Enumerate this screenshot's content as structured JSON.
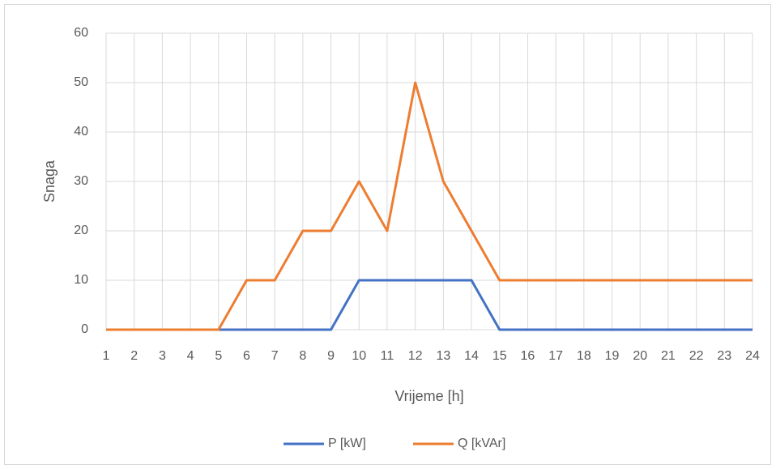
{
  "chart_data": {
    "type": "line",
    "x": [
      1,
      2,
      3,
      4,
      5,
      6,
      7,
      8,
      9,
      10,
      11,
      12,
      13,
      14,
      15,
      16,
      17,
      18,
      19,
      20,
      21,
      22,
      23,
      24
    ],
    "xlim": [
      1,
      24
    ],
    "xticks": [
      1,
      2,
      3,
      4,
      5,
      6,
      7,
      8,
      9,
      10,
      11,
      12,
      13,
      14,
      15,
      16,
      17,
      18,
      19,
      20,
      21,
      22,
      23,
      24
    ],
    "ylim": [
      0,
      60
    ],
    "yticks": [
      0,
      10,
      20,
      30,
      40,
      50,
      60
    ],
    "x_label": "Vrijeme [h]",
    "y_label": "Snaga",
    "grid": true,
    "legend": "bottom",
    "series": [
      {
        "name": "P [kW]",
        "color": "#4472c4",
        "values": [
          0,
          0,
          0,
          0,
          0,
          0,
          0,
          0,
          0,
          10,
          10,
          10,
          10,
          10,
          0,
          0,
          0,
          0,
          0,
          0,
          0,
          0,
          0,
          0
        ]
      },
      {
        "name": "Q [kVAr]",
        "color": "#ed7d31",
        "values": [
          0,
          0,
          0,
          0,
          0,
          10,
          10,
          20,
          20,
          30,
          20,
          50,
          30,
          20,
          10,
          10,
          10,
          10,
          10,
          10,
          10,
          10,
          10,
          10
        ]
      }
    ]
  }
}
